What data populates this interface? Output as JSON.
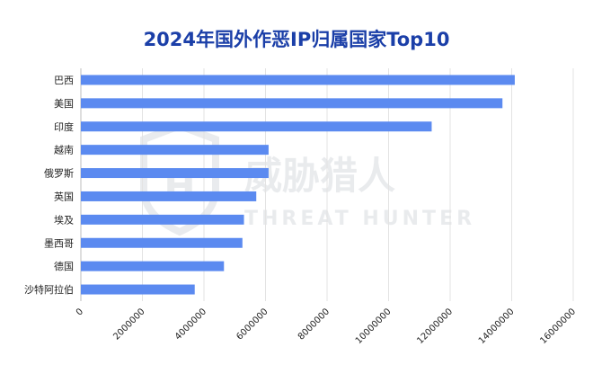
{
  "chart_data": {
    "type": "bar",
    "orientation": "horizontal",
    "title": "2024年国外作恶IP归属国家Top10",
    "categories": [
      "巴西",
      "美国",
      "印度",
      "越南",
      "俄罗斯",
      "英国",
      "埃及",
      "墨西哥",
      "德国",
      "沙特阿拉伯"
    ],
    "values": [
      14100000,
      13700000,
      11400000,
      6100000,
      6100000,
      5700000,
      5300000,
      5250000,
      4650000,
      3700000
    ],
    "xlim": [
      0,
      16000000
    ],
    "xticks": [
      "0",
      "2000000",
      "4000000",
      "6000000",
      "8000000",
      "10000000",
      "12000000",
      "14000000",
      "16000000"
    ],
    "xtick_values": [
      0,
      2000000,
      4000000,
      6000000,
      8000000,
      10000000,
      12000000,
      14000000,
      16000000
    ],
    "xlabel": "",
    "ylabel": "",
    "grid": "vertical",
    "legend": "none",
    "bar_color": "#5b8af0",
    "title_color": "#1b3fa8"
  },
  "watermark": {
    "main": "威胁猎人",
    "sub": "THREAT HUNTER",
    "logo_letter": "H"
  }
}
